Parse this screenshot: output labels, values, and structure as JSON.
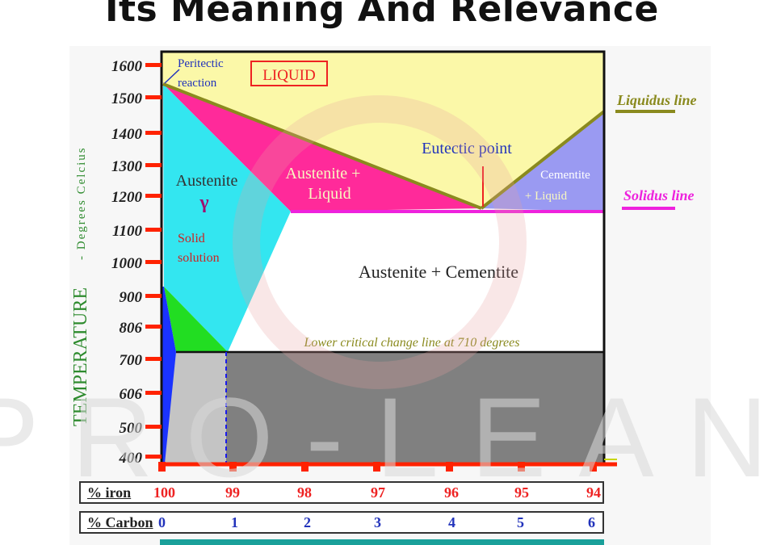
{
  "page": {
    "title": "Its Meaning And Relevance"
  },
  "watermark": {
    "text": "PRO-LEAN",
    "color": "#d9d9d9"
  },
  "diagram": {
    "y_axis": {
      "label_main": "TEMPERATURE",
      "label_sub": "- Degrees Celcius",
      "label_color": "#2e8b2e",
      "ticks": [
        "1600",
        "1500",
        "1400",
        "1300",
        "1200",
        "1100",
        "1000",
        "900",
        "806",
        "700",
        "606",
        "500",
        "400"
      ]
    },
    "regions": {
      "liquid": "LIQUID",
      "austenite": "Austenite",
      "gamma": "γ",
      "solid_solution_1": "Solid",
      "solid_solution_2": "solution",
      "austenite_liquid_1": "Austenite +",
      "austenite_liquid_2": "Liquid",
      "cementite_liquid_1": "Cementite",
      "cementite_liquid_2": "+ Liquid",
      "austenite_cementite": "Austenite + Cementite"
    },
    "annotations": {
      "peritectic_1": "Peritectic",
      "peritectic_2": "reaction",
      "eutectic": "Eutectic point",
      "lower_critical": "Lower critical change line at 710 degrees",
      "liquidus": "Liquidus line",
      "solidus": "Solidus line"
    },
    "colors": {
      "liquid": "#fbf8a8",
      "austenite": "#33e6f0",
      "austenite_liquid": "#ff2a9a",
      "cementite_liquid": "#9a9af2",
      "ferrite": "#22dd22",
      "ferrite_cementite": "#808080",
      "liquidus_line": "#8a8a1e",
      "solidus_line": "#ee22dd",
      "tick_red": "#ff2200",
      "iron_red": "#ee2222",
      "carbon_blue": "#2233bb"
    }
  },
  "scale": {
    "iron_label": "% iron",
    "carbon_label": "% Carbon",
    "iron": [
      "100",
      "99",
      "98",
      "97",
      "96",
      "95",
      "94"
    ],
    "carbon": [
      "0",
      "1",
      "2",
      "3",
      "4",
      "5",
      "6"
    ]
  }
}
